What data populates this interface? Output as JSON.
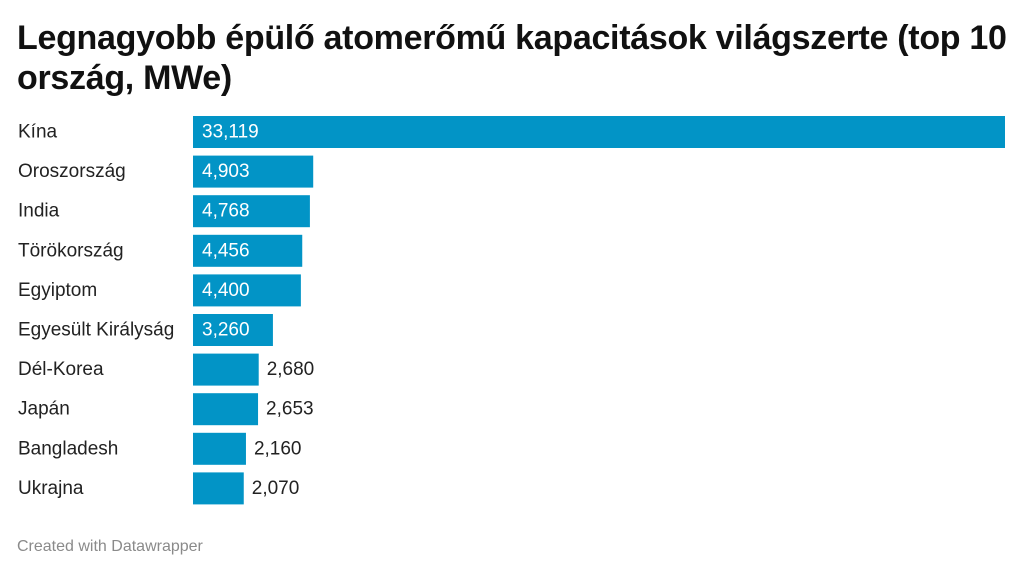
{
  "chart_data": {
    "type": "bar",
    "orientation": "horizontal",
    "title": "Legnagyobb épülő atomerőmű kapacitások világszerte (top 10 ország, MWe)",
    "categories": [
      "Kína",
      "Oroszország",
      "India",
      "Törökország",
      "Egyiptom",
      "Egyesült Királyság",
      "Dél-Korea",
      "Japán",
      "Bangladesh",
      "Ukrajna"
    ],
    "values": [
      33119,
      4903,
      4768,
      4456,
      4400,
      3260,
      2680,
      2653,
      2160,
      2070
    ],
    "value_labels": [
      "33,119",
      "4,903",
      "4,768",
      "4,456",
      "4,400",
      "3,260",
      "2,680",
      "2,653",
      "2,160",
      "2,070"
    ],
    "xlim": [
      0,
      33119
    ],
    "grid": false,
    "bar_color": "#0294c6"
  },
  "footer": {
    "credit": "Created with Datawrapper"
  }
}
